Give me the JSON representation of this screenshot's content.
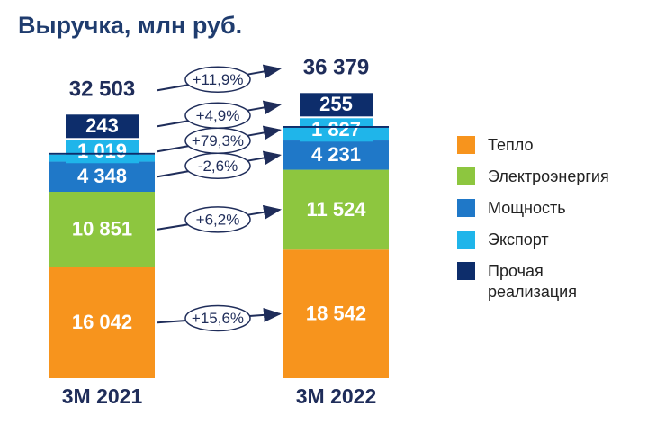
{
  "chart_data": {
    "type": "stacked-bar",
    "title": "Выручка, млн руб.",
    "categories": [
      "3M 2021",
      "3M 2022"
    ],
    "series": [
      {
        "name": "Тепло",
        "color": "#f7941d",
        "values": [
          16042,
          18542
        ],
        "value_labels": [
          "16 042",
          "18 542"
        ],
        "change": {
          "value": 15.6,
          "label": "+15,6%"
        }
      },
      {
        "name": "Электроэнергия",
        "color": "#8dc63f",
        "values": [
          10851,
          11524
        ],
        "value_labels": [
          "10 851",
          "11 524"
        ],
        "change": {
          "value": 6.2,
          "label": "+6,2%"
        }
      },
      {
        "name": "Мощность",
        "color": "#1f78c8",
        "values": [
          4348,
          4231
        ],
        "value_labels": [
          "4 348",
          "4 231"
        ],
        "change": {
          "value": -2.6,
          "label": "-2,6%"
        }
      },
      {
        "name": "Экспорт",
        "color": "#1fb5ea",
        "values": [
          1019,
          1827
        ],
        "value_labels": [
          "1 019",
          "1 827"
        ],
        "change": {
          "value": 79.3,
          "label": "+79,3%"
        }
      },
      {
        "name": "Прочая реализация",
        "color": "#0d2d6b",
        "values": [
          243,
          255
        ],
        "value_labels": [
          "243",
          "255"
        ],
        "change": {
          "value": 4.9,
          "label": "+4,9%"
        }
      }
    ],
    "totals": {
      "values": [
        32503,
        36379
      ],
      "value_labels": [
        "32 503",
        "36 379"
      ],
      "change": {
        "value": 11.9,
        "label": "+11,9%"
      }
    }
  }
}
